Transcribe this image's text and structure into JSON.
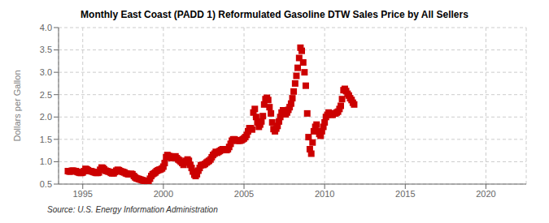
{
  "chart_data": {
    "type": "scatter",
    "title": "Monthly East Coast (PADD 1) Reformulated Gasoline DTW Sales Price by All Sellers",
    "y_label": "Dollars per Gallon",
    "annotations": [
      "Source: U.S. Energy Information Administration"
    ],
    "color": "#cc0000",
    "marker": "square",
    "line_style": "none",
    "grid": true,
    "xlim": [
      1993.5,
      2022.5
    ],
    "xticks": [
      1995,
      2000,
      2005,
      2010,
      2015,
      2020
    ],
    "ylim": [
      0.5,
      4.0
    ],
    "yticks": [
      0.5,
      {
        "value": 1.0,
        "label": "1.0"
      },
      1.5,
      {
        "value": 2.0,
        "label": "2.0"
      },
      2.5,
      {
        "value": 3.0,
        "label": "3.0"
      },
      3.5,
      {
        "value": 4.0,
        "label": "4.0"
      }
    ],
    "x": [
      1994.08,
      1994.17,
      1994.25,
      1994.33,
      1994.42,
      1994.5,
      1994.58,
      1994.67,
      1994.75,
      1994.83,
      1994.92,
      1995.0,
      1995.08,
      1995.17,
      1995.25,
      1995.33,
      1995.42,
      1995.5,
      1995.58,
      1995.67,
      1995.75,
      1995.83,
      1995.92,
      1996.0,
      1996.08,
      1996.17,
      1996.25,
      1996.33,
      1996.42,
      1996.5,
      1996.58,
      1996.67,
      1996.75,
      1996.83,
      1996.92,
      1997.0,
      1997.08,
      1997.17,
      1997.25,
      1997.33,
      1997.42,
      1997.5,
      1997.58,
      1997.67,
      1997.75,
      1997.83,
      1997.92,
      1998.0,
      1998.08,
      1998.17,
      1998.25,
      1998.33,
      1998.42,
      1998.5,
      1998.58,
      1998.67,
      1998.75,
      1998.83,
      1998.92,
      1999.0,
      1999.08,
      1999.17,
      1999.25,
      1999.33,
      1999.42,
      1999.5,
      1999.58,
      1999.67,
      1999.75,
      1999.83,
      1999.92,
      2000.0,
      2000.08,
      2000.17,
      2000.25,
      2000.33,
      2000.42,
      2000.5,
      2000.58,
      2000.67,
      2000.75,
      2000.83,
      2000.92,
      2001.0,
      2001.08,
      2001.17,
      2001.25,
      2001.33,
      2001.42,
      2001.5,
      2001.58,
      2001.67,
      2001.75,
      2001.83,
      2001.92,
      2002.0,
      2002.08,
      2002.17,
      2002.25,
      2002.33,
      2002.42,
      2002.5,
      2002.58,
      2002.67,
      2002.75,
      2002.83,
      2002.92,
      2003.0,
      2003.08,
      2003.17,
      2003.25,
      2003.33,
      2003.42,
      2003.5,
      2003.58,
      2003.67,
      2003.75,
      2003.83,
      2003.92,
      2004.0,
      2004.08,
      2004.17,
      2004.25,
      2004.33,
      2004.42,
      2004.5,
      2004.58,
      2004.67,
      2004.75,
      2004.83,
      2004.92,
      2005.0,
      2005.08,
      2005.17,
      2005.25,
      2005.33,
      2005.42,
      2005.5,
      2005.58,
      2005.67,
      2005.75,
      2005.83,
      2005.92,
      2006.0,
      2006.08,
      2006.17,
      2006.25,
      2006.33,
      2006.42,
      2006.5,
      2006.58,
      2006.67,
      2006.75,
      2006.83,
      2006.92,
      2007.0,
      2007.08,
      2007.17,
      2007.25,
      2007.33,
      2007.42,
      2007.5,
      2007.58,
      2007.67,
      2007.75,
      2007.83,
      2007.92,
      2008.0,
      2008.08,
      2008.17,
      2008.25,
      2008.33,
      2008.42,
      2008.5,
      2008.58,
      2008.67,
      2008.75,
      2008.83,
      2008.92,
      2009.0,
      2009.08,
      2009.17,
      2009.25,
      2009.33,
      2009.42,
      2009.5,
      2009.58,
      2009.67,
      2009.75,
      2009.83,
      2009.92,
      2010.0,
      2010.08,
      2010.17,
      2010.25,
      2010.33,
      2010.42,
      2010.5,
      2010.58,
      2010.67,
      2010.75,
      2010.83,
      2010.92,
      2011.0,
      2011.08,
      2011.17,
      2011.25,
      2011.33,
      2011.42,
      2011.5,
      2011.58,
      2011.67,
      2011.75,
      2011.83
    ],
    "values": [
      0.79,
      0.78,
      0.78,
      0.8,
      0.8,
      0.79,
      0.79,
      0.77,
      0.76,
      0.75,
      0.75,
      0.76,
      0.79,
      0.84,
      0.83,
      0.81,
      0.79,
      0.79,
      0.78,
      0.77,
      0.76,
      0.75,
      0.75,
      0.76,
      0.82,
      0.87,
      0.86,
      0.83,
      0.8,
      0.79,
      0.78,
      0.77,
      0.75,
      0.74,
      0.74,
      0.77,
      0.8,
      0.82,
      0.81,
      0.79,
      0.78,
      0.77,
      0.76,
      0.74,
      0.73,
      0.72,
      0.72,
      0.73,
      0.72,
      0.68,
      0.65,
      0.63,
      0.62,
      0.61,
      0.6,
      0.59,
      0.58,
      0.57,
      0.56,
      0.55,
      0.57,
      0.62,
      0.68,
      0.72,
      0.74,
      0.76,
      0.79,
      0.81,
      0.82,
      0.83,
      0.85,
      0.89,
      0.97,
      1.1,
      1.15,
      1.13,
      1.12,
      1.08,
      1.08,
      1.1,
      1.12,
      1.08,
      1.05,
      1.03,
      1.0,
      0.97,
      0.93,
      0.98,
      1.02,
      1.05,
      1.02,
      0.93,
      0.86,
      0.78,
      0.71,
      0.68,
      0.72,
      0.8,
      0.86,
      0.92,
      0.93,
      0.93,
      0.95,
      0.98,
      1.0,
      1.02,
      1.05,
      1.1,
      1.15,
      1.18,
      1.22,
      1.2,
      1.22,
      1.24,
      1.26,
      1.28,
      1.28,
      1.27,
      1.26,
      1.28,
      1.33,
      1.4,
      1.47,
      1.5,
      1.5,
      1.48,
      1.47,
      1.47,
      1.47,
      1.48,
      1.5,
      1.52,
      1.55,
      1.6,
      1.68,
      1.75,
      1.75,
      1.72,
      2.1,
      2.18,
      2.0,
      1.88,
      1.78,
      1.83,
      1.9,
      2.02,
      2.28,
      2.4,
      2.43,
      2.38,
      2.22,
      2.08,
      1.88,
      1.73,
      1.68,
      1.74,
      1.8,
      1.9,
      2.0,
      2.1,
      2.15,
      2.1,
      2.06,
      2.1,
      2.16,
      2.22,
      2.3,
      2.42,
      2.57,
      2.75,
      2.92,
      3.1,
      3.32,
      3.55,
      3.48,
      3.22,
      3.0,
      2.7,
      2.08,
      1.55,
      1.28,
      1.18,
      1.43,
      1.68,
      1.78,
      1.83,
      1.68,
      1.62,
      1.58,
      1.68,
      1.78,
      1.88,
      2.0,
      2.05,
      2.1,
      2.08,
      2.05,
      2.05,
      2.08,
      2.08,
      2.1,
      2.12,
      2.18,
      2.25,
      2.4,
      2.6,
      2.63,
      2.58,
      2.52,
      2.48,
      2.42,
      2.38,
      2.32,
      2.28
    ]
  }
}
